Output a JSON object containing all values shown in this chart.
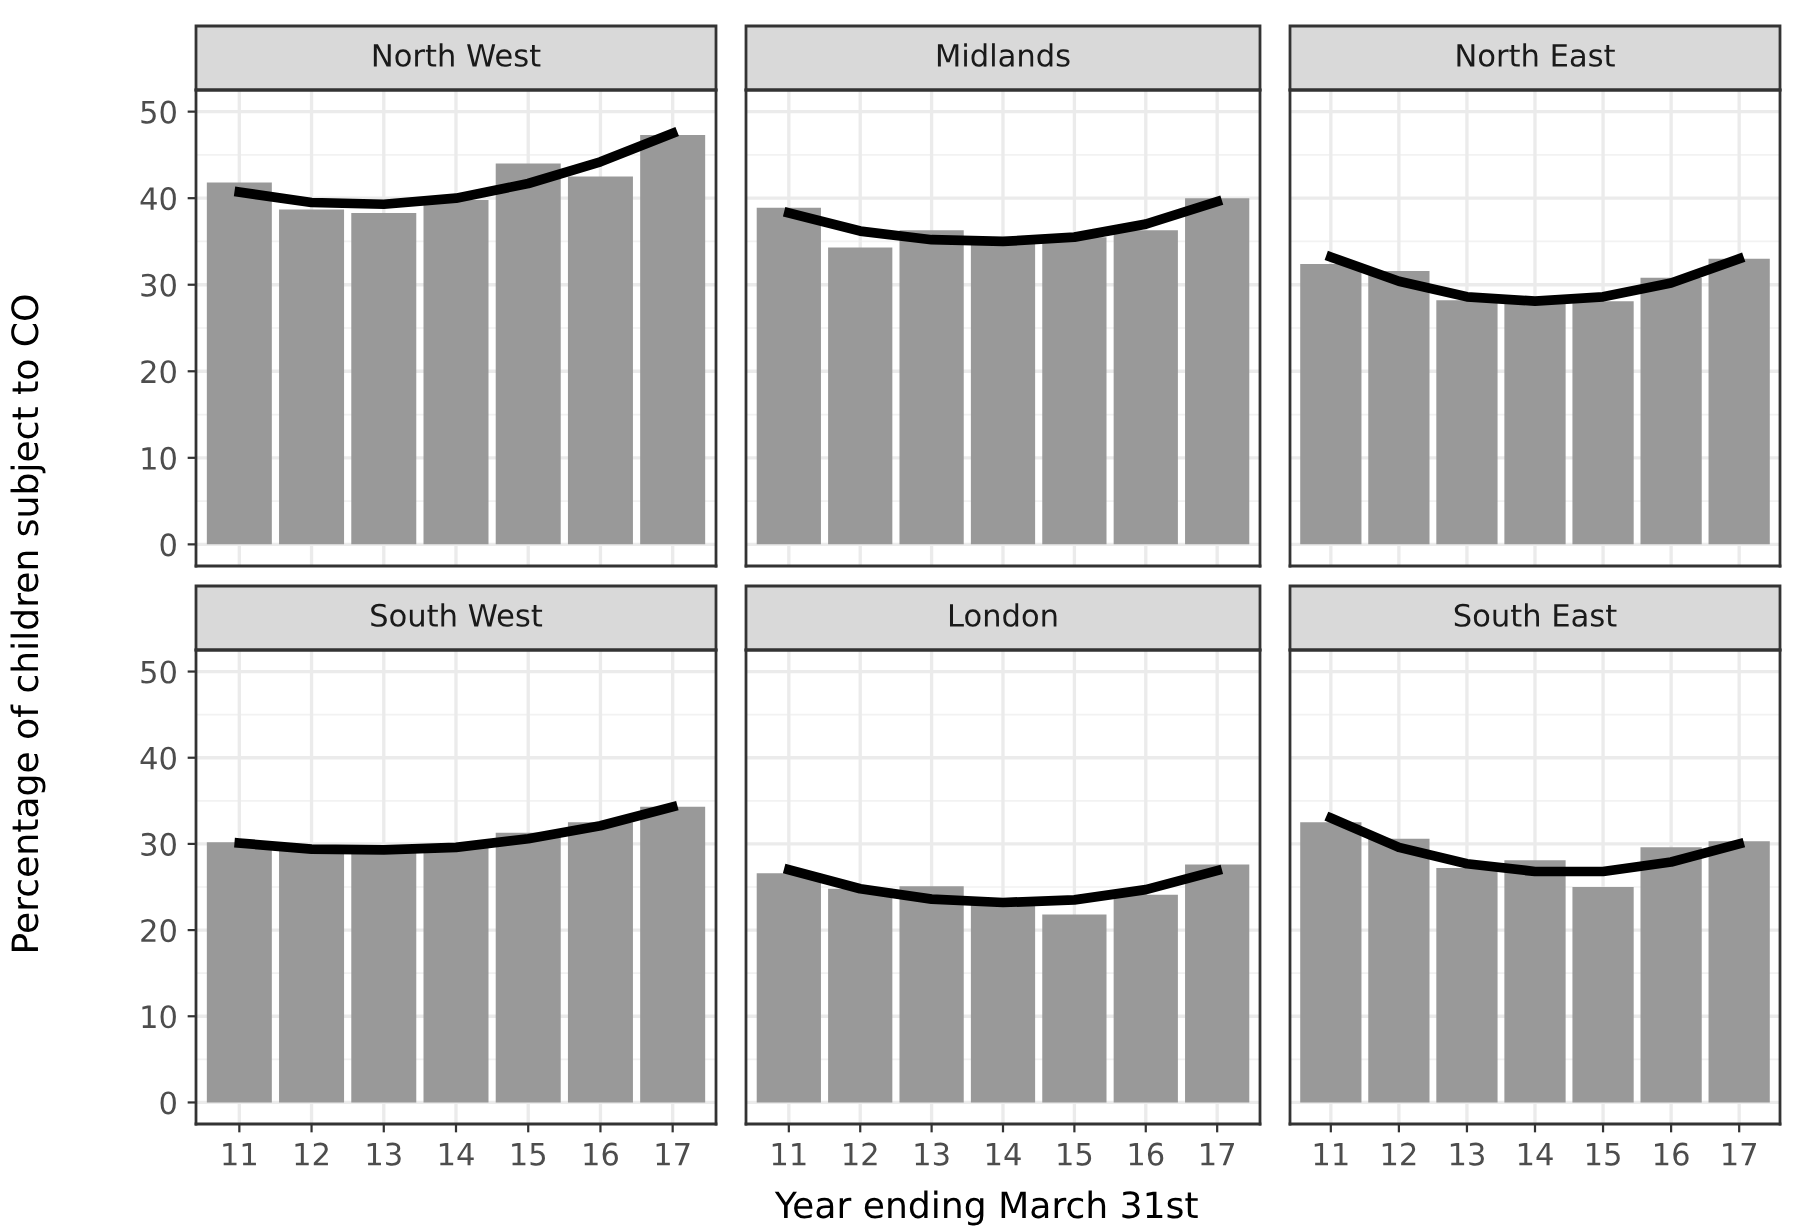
{
  "chart_data": [
    {
      "type": "bar",
      "title": "North West",
      "ylabel": "Percentage of children subject to CO",
      "categories": [
        "11",
        "12",
        "13",
        "14",
        "15",
        "16",
        "17"
      ],
      "ylim": [
        -2.5,
        52.5
      ],
      "yticks": [
        0,
        10,
        20,
        30,
        40,
        50
      ],
      "grid": true,
      "tick_labels": "y",
      "series": [
        {
          "color": "#999999",
          "values": [
            41.8,
            38.7,
            38.3,
            39.8,
            44.0,
            42.5,
            47.3
          ]
        },
        {
          "type": "line",
          "color": "#000000",
          "values": [
            40.7,
            39.5,
            39.3,
            40.0,
            41.7,
            44.2,
            47.5
          ]
        }
      ]
    },
    {
      "type": "bar",
      "title": "Midlands",
      "categories": [
        "11",
        "12",
        "13",
        "14",
        "15",
        "16",
        "17"
      ],
      "ylim": [
        -2.5,
        52.5
      ],
      "yticks": [
        0,
        10,
        20,
        30,
        40,
        50
      ],
      "grid": true,
      "tick_labels": false,
      "series": [
        {
          "color": "#999999",
          "values": [
            38.9,
            34.3,
            36.3,
            35.2,
            35.5,
            36.3,
            40.0
          ]
        },
        {
          "type": "line",
          "color": "#000000",
          "values": [
            38.3,
            36.2,
            35.2,
            35.0,
            35.5,
            37.0,
            39.6
          ]
        }
      ]
    },
    {
      "type": "bar",
      "title": "North East",
      "categories": [
        "11",
        "12",
        "13",
        "14",
        "15",
        "16",
        "17"
      ],
      "ylim": [
        -2.5,
        52.5
      ],
      "yticks": [
        0,
        10,
        20,
        30,
        40,
        50
      ],
      "grid": true,
      "tick_labels": false,
      "series": [
        {
          "color": "#999999",
          "values": [
            32.4,
            31.6,
            28.2,
            28.0,
            28.1,
            30.8,
            33.0
          ]
        },
        {
          "type": "line",
          "color": "#000000",
          "values": [
            33.2,
            30.4,
            28.6,
            28.1,
            28.6,
            30.2,
            33.0
          ]
        }
      ]
    },
    {
      "type": "bar",
      "title": "South West",
      "categories": [
        "11",
        "12",
        "13",
        "14",
        "15",
        "16",
        "17"
      ],
      "ylim": [
        -2.5,
        52.5
      ],
      "yticks": [
        0,
        10,
        20,
        30,
        40,
        50
      ],
      "grid": true,
      "series": [
        {
          "color": "#999999",
          "values": [
            30.2,
            29.5,
            29.3,
            29.6,
            31.3,
            32.5,
            34.3
          ]
        },
        {
          "type": "line",
          "color": "#000000",
          "values": [
            30.1,
            29.4,
            29.3,
            29.6,
            30.6,
            32.1,
            34.3
          ]
        }
      ]
    },
    {
      "type": "bar",
      "title": "London",
      "xlabel": "Year ending March 31st",
      "categories": [
        "11",
        "12",
        "13",
        "14",
        "15",
        "16",
        "17"
      ],
      "ylim": [
        -2.5,
        52.5
      ],
      "yticks": [
        0,
        10,
        20,
        30,
        40,
        50
      ],
      "grid": true,
      "tick_labels": "x",
      "series": [
        {
          "color": "#999999",
          "values": [
            26.6,
            24.8,
            25.1,
            23.2,
            21.8,
            24.1,
            27.6
          ]
        },
        {
          "type": "line",
          "color": "#000000",
          "values": [
            27.0,
            24.8,
            23.6,
            23.2,
            23.5,
            24.7,
            26.9
          ]
        }
      ]
    },
    {
      "type": "bar",
      "title": "South East",
      "categories": [
        "11",
        "12",
        "13",
        "14",
        "15",
        "16",
        "17"
      ],
      "ylim": [
        -2.5,
        52.5
      ],
      "yticks": [
        0,
        10,
        20,
        30,
        40,
        50
      ],
      "grid": true,
      "tick_labels": "x",
      "series": [
        {
          "color": "#999999",
          "values": [
            32.5,
            30.6,
            27.2,
            28.1,
            25.0,
            29.6,
            30.3
          ]
        },
        {
          "type": "line",
          "color": "#000000",
          "values": [
            33.0,
            29.6,
            27.7,
            26.8,
            26.8,
            27.9,
            30.0
          ]
        }
      ]
    }
  ]
}
